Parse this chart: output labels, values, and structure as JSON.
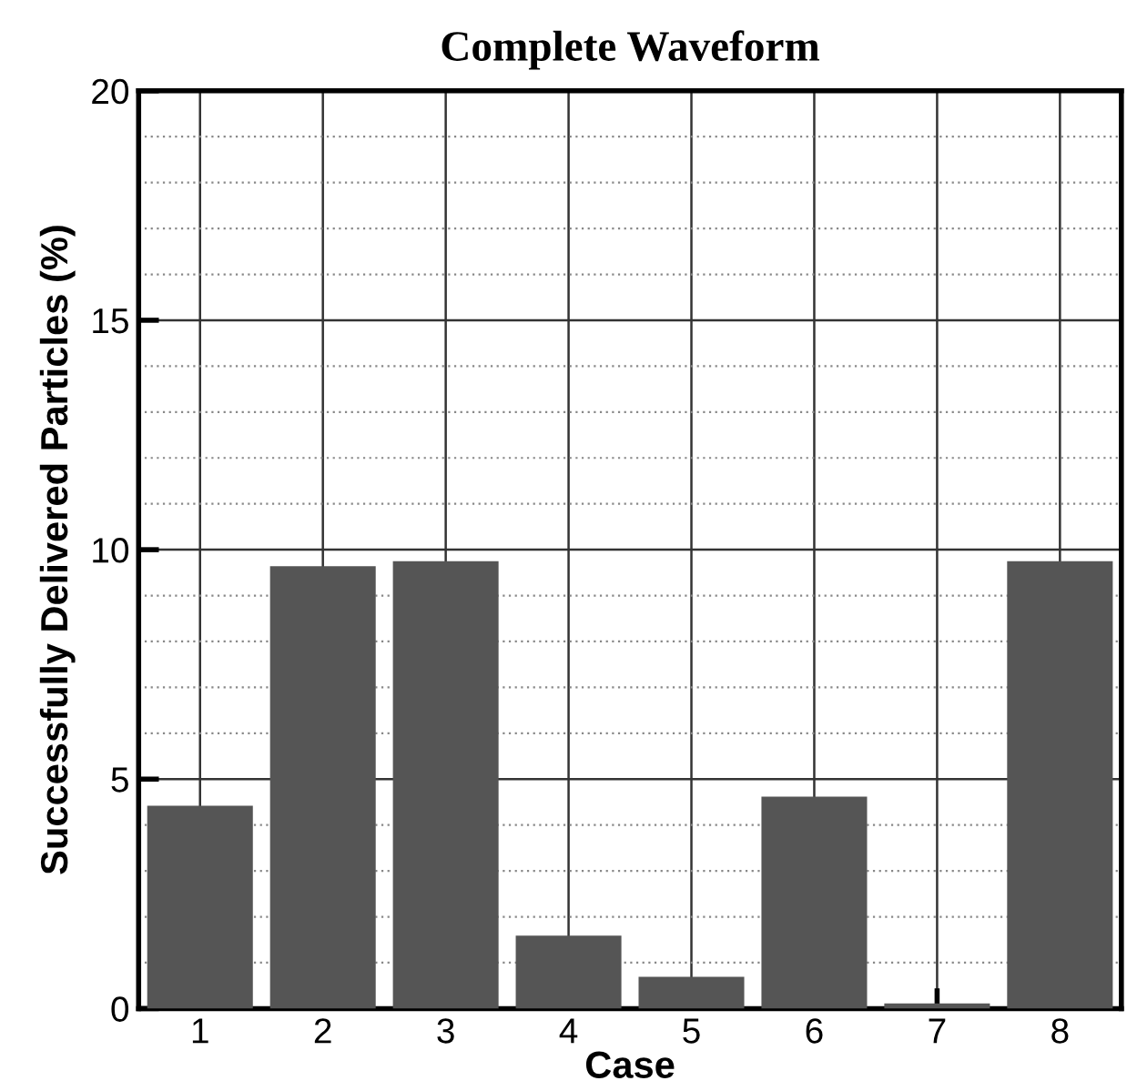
{
  "chart_data": {
    "type": "bar",
    "title": "Complete Waveform",
    "xlabel": "Case",
    "ylabel": "Successfully Delivered Particles (%)",
    "categories": [
      "1",
      "2",
      "3",
      "4",
      "5",
      "6",
      "7",
      "8"
    ],
    "values": [
      4.42,
      9.64,
      9.75,
      1.59,
      0.69,
      4.62,
      0.11,
      9.75
    ],
    "color": "#555555",
    "ylim": [
      0,
      20
    ],
    "yticks": [
      0,
      {
        "value": 1,
        "label": null
      },
      {
        "value": 2,
        "label": null
      },
      {
        "value": 3,
        "label": null
      },
      {
        "value": 4,
        "label": null
      },
      5,
      {
        "value": 6,
        "label": null
      },
      {
        "value": 7,
        "label": null
      },
      {
        "value": 8,
        "label": null
      },
      {
        "value": 9,
        "label": null
      },
      10,
      {
        "value": 11,
        "label": null
      },
      {
        "value": 12,
        "label": null
      },
      {
        "value": 13,
        "label": null
      },
      {
        "value": 14,
        "label": null
      },
      15,
      {
        "value": 16,
        "label": null
      },
      {
        "value": 17,
        "label": null
      },
      {
        "value": 18,
        "label": null
      },
      {
        "value": 19,
        "label": null
      },
      20
    ],
    "grid": true
  }
}
